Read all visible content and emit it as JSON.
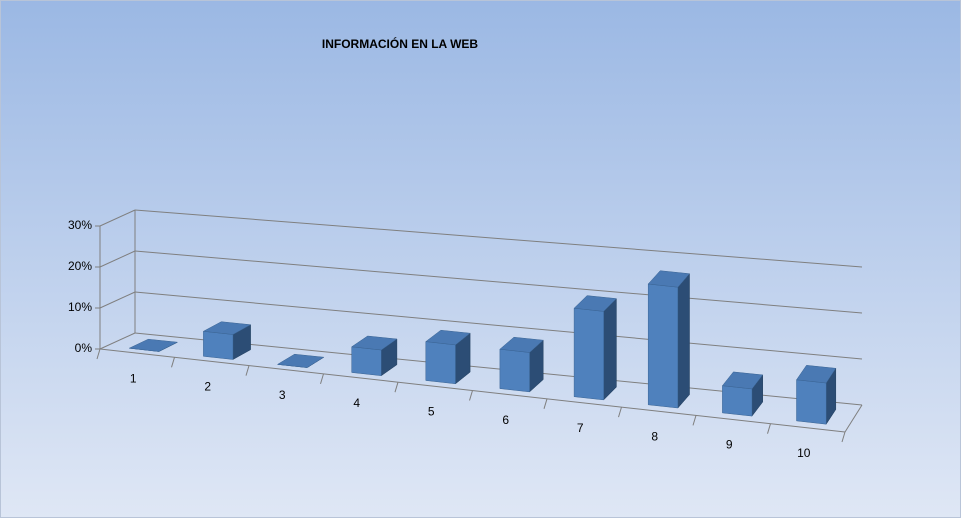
{
  "chart_data": {
    "type": "bar",
    "title": "INFORMACIÓN EN LA WEB",
    "categories": [
      "1",
      "2",
      "3",
      "4",
      "5",
      "6",
      "7",
      "8",
      "9",
      "10"
    ],
    "values": [
      0,
      6,
      0,
      6,
      9,
      9,
      20,
      27,
      6,
      9
    ],
    "color": "#4f81bd",
    "ylim": [
      0,
      30
    ],
    "yticks": [
      {
        "value": 0,
        "label": "0%"
      },
      {
        "value": 10,
        "label": "10%"
      },
      {
        "value": 20,
        "label": "20%"
      },
      {
        "value": 30,
        "label": "30%"
      }
    ],
    "grid": true
  }
}
